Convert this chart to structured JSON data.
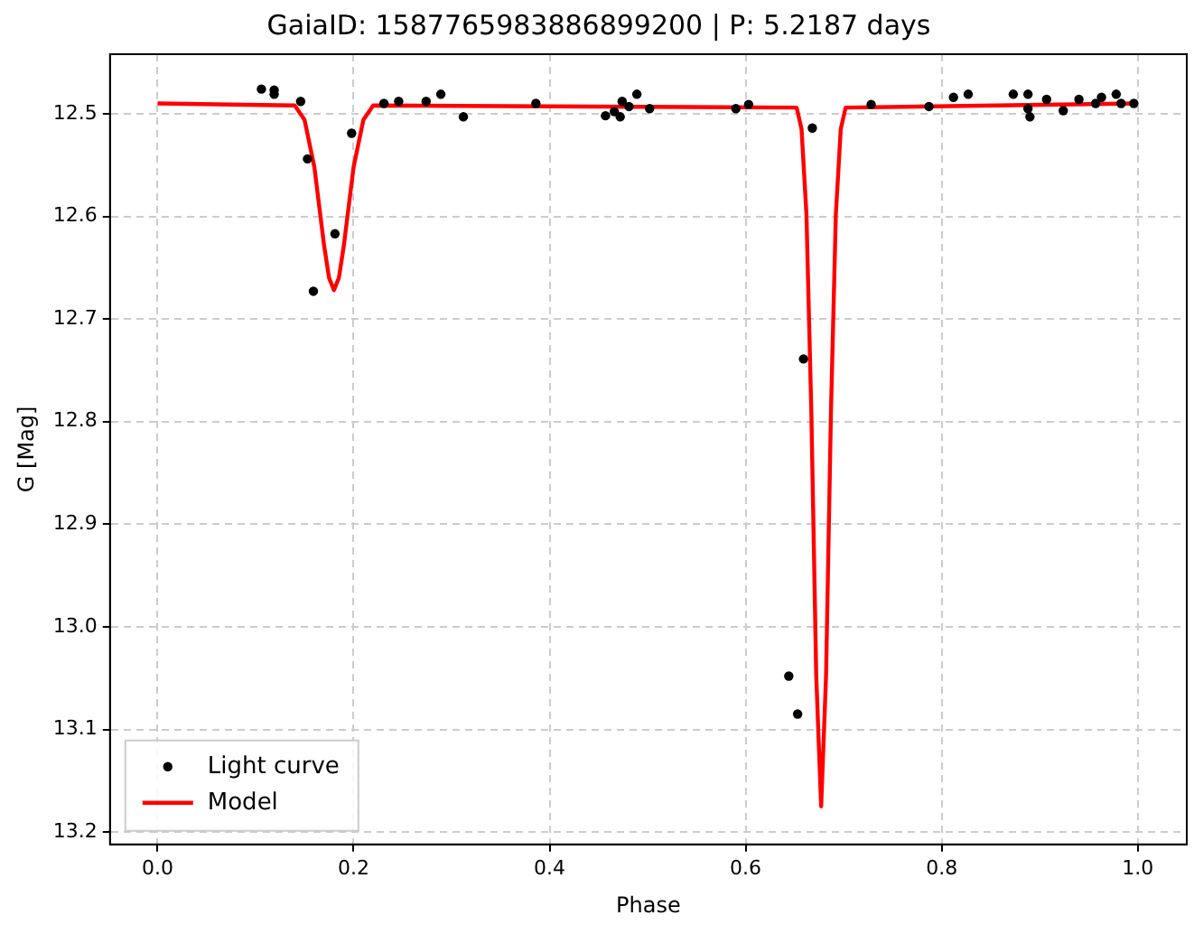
{
  "chart_data": {
    "type": "scatter",
    "title": "GaiaID: 1587765983886899200 | P: 5.2187 days",
    "xlabel": "Phase",
    "ylabel": "G [Mag]",
    "xlim": [
      -0.0485,
      1.05
    ],
    "xticks": [
      {
        "value": 0,
        "label": "0.0"
      },
      0.2,
      0.4,
      0.6,
      0.8,
      {
        "value": 1,
        "label": "1.0"
      }
    ],
    "ylim": [
      13.212,
      12.442
    ],
    "yticks": [
      12.5,
      12.6,
      12.7,
      12.8,
      12.9,
      {
        "value": 13,
        "label": "13.0"
      },
      13.1,
      13.2
    ],
    "grid": true,
    "legend": "bottom left",
    "series": [
      {
        "name": "Light curve",
        "color": "#000000",
        "marker": "circle",
        "x": [
          0.106,
          0.119,
          0.119,
          0.146,
          0.153,
          0.159,
          0.181,
          0.198,
          0.231,
          0.246,
          0.274,
          0.289,
          0.312,
          0.386,
          0.457,
          0.466,
          0.472,
          0.474,
          0.481,
          0.489,
          0.502,
          0.59,
          0.603,
          0.644,
          0.653,
          0.659,
          0.668,
          0.728,
          0.787,
          0.812,
          0.827,
          0.873,
          0.888,
          0.888,
          0.89,
          0.907,
          0.924,
          0.94,
          0.957,
          0.963,
          0.978,
          0.983,
          0.996
        ],
        "values": [
          12.476,
          12.477,
          12.481,
          12.488,
          12.544,
          12.673,
          12.617,
          12.519,
          12.49,
          12.488,
          12.488,
          12.481,
          12.503,
          12.49,
          12.502,
          12.498,
          12.503,
          12.488,
          12.493,
          12.481,
          12.495,
          12.495,
          12.491,
          13.048,
          13.085,
          12.739,
          12.514,
          12.491,
          12.493,
          12.484,
          12.481,
          12.481,
          12.481,
          12.495,
          12.503,
          12.486,
          12.497,
          12.486,
          12.49,
          12.484,
          12.481,
          12.49,
          12.49
        ]
      },
      {
        "name": "Model",
        "type": "line",
        "color": "#ff0000",
        "marker": "none",
        "line_style": "solid",
        "x": [
          0,
          0.14,
          0.15,
          0.16,
          0.17,
          0.175,
          0.18,
          0.185,
          0.19,
          0.2,
          0.21,
          0.22,
          0.652,
          0.657,
          0.662,
          0.667,
          0.672,
          0.677,
          0.682,
          0.687,
          0.692,
          0.697,
          0.702,
          1.0
        ],
        "values": [
          12.49,
          12.492,
          12.506,
          12.552,
          12.629,
          12.66,
          12.672,
          12.66,
          12.629,
          12.552,
          12.506,
          12.492,
          12.494,
          12.515,
          12.598,
          12.791,
          13.048,
          13.175,
          13.048,
          12.791,
          12.598,
          12.515,
          12.494,
          12.49
        ]
      }
    ]
  }
}
